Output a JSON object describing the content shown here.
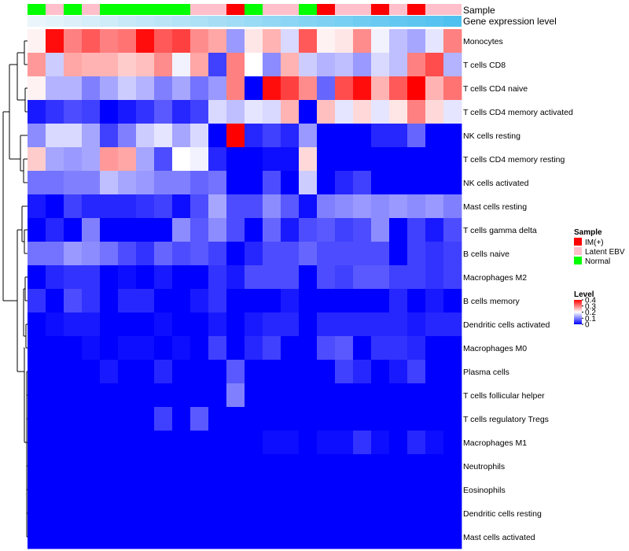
{
  "chart_data": {
    "type": "heatmap",
    "tracks": {
      "sample_label": "Sample",
      "expression_label": "Gene expression level"
    },
    "columns": 24,
    "sample_groups": [
      "Normal",
      "Latent EBV",
      "Normal",
      "Latent EBV",
      "Normal",
      "Normal",
      "Normal",
      "Normal",
      "Normal",
      "Latent EBV",
      "Latent EBV",
      "IM(+)",
      "Normal",
      "Latent EBV",
      "Latent EBV",
      "Normal",
      "IM(+)",
      "Latent EBV",
      "Latent EBV",
      "IM(+)",
      "Latent EBV",
      "IM(+)",
      "Latent EBV",
      "Latent EBV"
    ],
    "sample_colors": {
      "IM(+)": "#ff0000",
      "Latent EBV": "#ffc0cb",
      "Normal": "#00ff00"
    },
    "rows": [
      "Monocytes",
      "T cells CD8",
      "T cells CD4 naive",
      "T cells CD4 memory activated",
      "NK cells resting",
      "T cells CD4 memory resting",
      "NK cells activated",
      "Mast cells resting",
      "T cells gamma delta",
      "B cells naive",
      "Macrophages M2",
      "B cells memory",
      "Dendritic cells activated",
      "Macrophages M0",
      "Plasma cells",
      "T cells follicular helper",
      "T cells regulatory  Tregs",
      "Macrophages M1",
      "Neutrophils",
      "Eosinophils",
      "Dendritic cells resting",
      "Mast cells activated"
    ],
    "values": [
      [
        0.21,
        0.39,
        0.3,
        0.33,
        0.3,
        0.31,
        0.39,
        0.33,
        0.35,
        0.29,
        0.27,
        0.12,
        0.22,
        0.26,
        0.17,
        0.33,
        0.21,
        0.22,
        0.29,
        0.19,
        0.15,
        0.13,
        0.18,
        0.3
      ],
      [
        0.28,
        0.16,
        0.27,
        0.26,
        0.26,
        0.24,
        0.25,
        0.29,
        0.19,
        0.27,
        0.05,
        0.3,
        0.2,
        0.11,
        0.26,
        0.16,
        0.14,
        0.15,
        0.12,
        0.17,
        0.15,
        0.3,
        0.34,
        0.14
      ],
      [
        0.21,
        0.14,
        0.14,
        0.1,
        0.13,
        0.16,
        0.14,
        0.1,
        0.13,
        0.09,
        0.12,
        0.3,
        0.0,
        0.39,
        0.35,
        0.29,
        0.08,
        0.34,
        0.39,
        0.26,
        0.33,
        0.4,
        0.26,
        0.31
      ],
      [
        0.02,
        0.04,
        0.06,
        0.05,
        0.0,
        0.02,
        0.04,
        0.07,
        0.03,
        0.05,
        0.17,
        0.15,
        0.18,
        0.17,
        0.26,
        0.0,
        0.25,
        0.18,
        0.23,
        0.18,
        0.22,
        0.3,
        0.23,
        0.18
      ],
      [
        0.11,
        0.17,
        0.17,
        0.13,
        0.05,
        0.1,
        0.16,
        0.18,
        0.13,
        0.17,
        0.0,
        0.4,
        0.03,
        0.05,
        0.03,
        0.12,
        0.0,
        0.0,
        0.0,
        0.03,
        0.03,
        0.08,
        0.0,
        0.0
      ],
      [
        0.24,
        0.13,
        0.12,
        0.13,
        0.28,
        0.27,
        0.13,
        0.06,
        0.2,
        0.19,
        0.03,
        0.0,
        0.0,
        0.01,
        0.01,
        0.23,
        0.0,
        0.0,
        0.0,
        0.0,
        0.0,
        0.0,
        0.0,
        0.0
      ],
      [
        0.09,
        0.09,
        0.1,
        0.1,
        0.15,
        0.13,
        0.12,
        0.1,
        0.1,
        0.08,
        0.09,
        0.0,
        0.0,
        0.06,
        0.0,
        0.16,
        0.0,
        0.03,
        0.05,
        0.0,
        0.0,
        0.0,
        0.0,
        0.0
      ],
      [
        0.02,
        0.0,
        0.05,
        0.03,
        0.03,
        0.03,
        0.04,
        0.05,
        0.01,
        0.06,
        0.13,
        0.06,
        0.06,
        0.11,
        0.07,
        0.01,
        0.1,
        0.11,
        0.12,
        0.11,
        0.12,
        0.11,
        0.12,
        0.1
      ],
      [
        0.0,
        0.03,
        0.0,
        0.1,
        0.0,
        0.0,
        0.0,
        0.0,
        0.11,
        0.07,
        0.11,
        0.06,
        0.0,
        0.08,
        0.02,
        0.06,
        0.07,
        0.05,
        0.06,
        0.11,
        0.0,
        0.05,
        0.02,
        0.06
      ],
      [
        0.09,
        0.09,
        0.12,
        0.11,
        0.09,
        0.06,
        0.04,
        0.08,
        0.06,
        0.07,
        0.05,
        0.0,
        0.03,
        0.06,
        0.06,
        0.08,
        0.06,
        0.06,
        0.06,
        0.06,
        0.0,
        0.05,
        0.04,
        0.05
      ],
      [
        0.0,
        0.03,
        0.04,
        0.04,
        0.0,
        0.01,
        0.0,
        0.02,
        0.0,
        0.0,
        0.04,
        0.02,
        0.06,
        0.06,
        0.06,
        0.0,
        0.06,
        0.05,
        0.07,
        0.07,
        0.05,
        0.05,
        0.04,
        0.05
      ],
      [
        0.04,
        0.0,
        0.06,
        0.04,
        0.0,
        0.03,
        0.03,
        0.0,
        0.0,
        0.02,
        0.04,
        0.0,
        0.0,
        0.0,
        0.02,
        0.0,
        0.0,
        0.0,
        0.0,
        0.0,
        0.03,
        0.0,
        0.02,
        0.0
      ],
      [
        0.0,
        0.01,
        0.02,
        0.02,
        0.0,
        0.0,
        0.0,
        0.01,
        0.0,
        0.0,
        0.02,
        0.0,
        0.02,
        0.03,
        0.03,
        0.0,
        0.03,
        0.03,
        0.03,
        0.03,
        0.03,
        0.02,
        0.03,
        0.03
      ],
      [
        0.0,
        0.0,
        0.0,
        0.01,
        0.0,
        0.01,
        0.01,
        0.0,
        0.01,
        0.0,
        0.05,
        0.0,
        0.03,
        0.05,
        0.0,
        0.0,
        0.06,
        0.07,
        0.0,
        0.04,
        0.04,
        0.03,
        0.0,
        0.0
      ],
      [
        0.0,
        0.0,
        0.0,
        0.0,
        0.02,
        0.0,
        0.0,
        0.03,
        0.0,
        0.0,
        0.0,
        0.07,
        0.0,
        0.0,
        0.0,
        0.0,
        0.0,
        0.05,
        0.03,
        0.0,
        0.02,
        0.05,
        0.0,
        0.0
      ],
      [
        0.0,
        0.0,
        0.0,
        0.0,
        0.0,
        0.0,
        0.0,
        0.0,
        0.0,
        0.0,
        0.0,
        0.1,
        0.0,
        0.0,
        0.0,
        0.0,
        0.0,
        0.0,
        0.0,
        0.0,
        0.0,
        0.0,
        0.0,
        0.0
      ],
      [
        0.0,
        0.0,
        0.0,
        0.0,
        0.0,
        0.0,
        0.0,
        0.05,
        0.0,
        0.07,
        0.0,
        0.0,
        0.0,
        0.0,
        0.0,
        0.0,
        0.0,
        0.0,
        0.0,
        0.0,
        0.0,
        0.0,
        0.0,
        0.0
      ],
      [
        0.0,
        0.0,
        0.0,
        0.0,
        0.0,
        0.0,
        0.0,
        0.0,
        0.0,
        0.0,
        0.0,
        0.0,
        0.0,
        0.01,
        0.01,
        0.0,
        0.01,
        0.01,
        0.04,
        0.01,
        0.0,
        0.03,
        0.01,
        0.0
      ],
      [
        0.0,
        0.0,
        0.0,
        0.0,
        0.0,
        0.0,
        0.0,
        0.0,
        0.0,
        0.0,
        0.0,
        0.0,
        0.0,
        0.0,
        0.0,
        0.0,
        0.0,
        0.0,
        0.0,
        0.0,
        0.0,
        0.0,
        0.0,
        0.0
      ],
      [
        0.0,
        0.0,
        0.0,
        0.0,
        0.0,
        0.0,
        0.0,
        0.0,
        0.0,
        0.0,
        0.0,
        0.0,
        0.0,
        0.0,
        0.0,
        0.0,
        0.0,
        0.0,
        0.0,
        0.0,
        0.0,
        0.0,
        0.0,
        0.0
      ],
      [
        0.0,
        0.0,
        0.0,
        0.0,
        0.0,
        0.0,
        0.0,
        0.0,
        0.0,
        0.0,
        0.0,
        0.0,
        0.0,
        0.0,
        0.0,
        0.0,
        0.0,
        0.0,
        0.0,
        0.0,
        0.0,
        0.0,
        0.0,
        0.0
      ],
      [
        0.0,
        0.0,
        0.0,
        0.0,
        0.0,
        0.0,
        0.0,
        0.0,
        0.0,
        0.0,
        0.0,
        0.0,
        0.0,
        0.0,
        0.0,
        0.0,
        0.0,
        0.0,
        0.0,
        0.0,
        0.0,
        0.0,
        0.0,
        0.0
      ]
    ],
    "color_scale": {
      "low": "#0000ff",
      "mid": "#ffffff",
      "high": "#ff0000",
      "min": 0,
      "mid_value": 0.2,
      "max": 0.4
    },
    "expression_gradient": {
      "low": "#eaf5fb",
      "high": "#4fc1ef"
    },
    "legend": {
      "sample_title": "Sample",
      "sample_entries": [
        "IM(+)",
        "Latent EBV",
        "Normal"
      ],
      "level_title": "Level",
      "level_ticks": [
        "0.4",
        "0.3",
        "0.2",
        "0.1",
        "0"
      ]
    }
  }
}
